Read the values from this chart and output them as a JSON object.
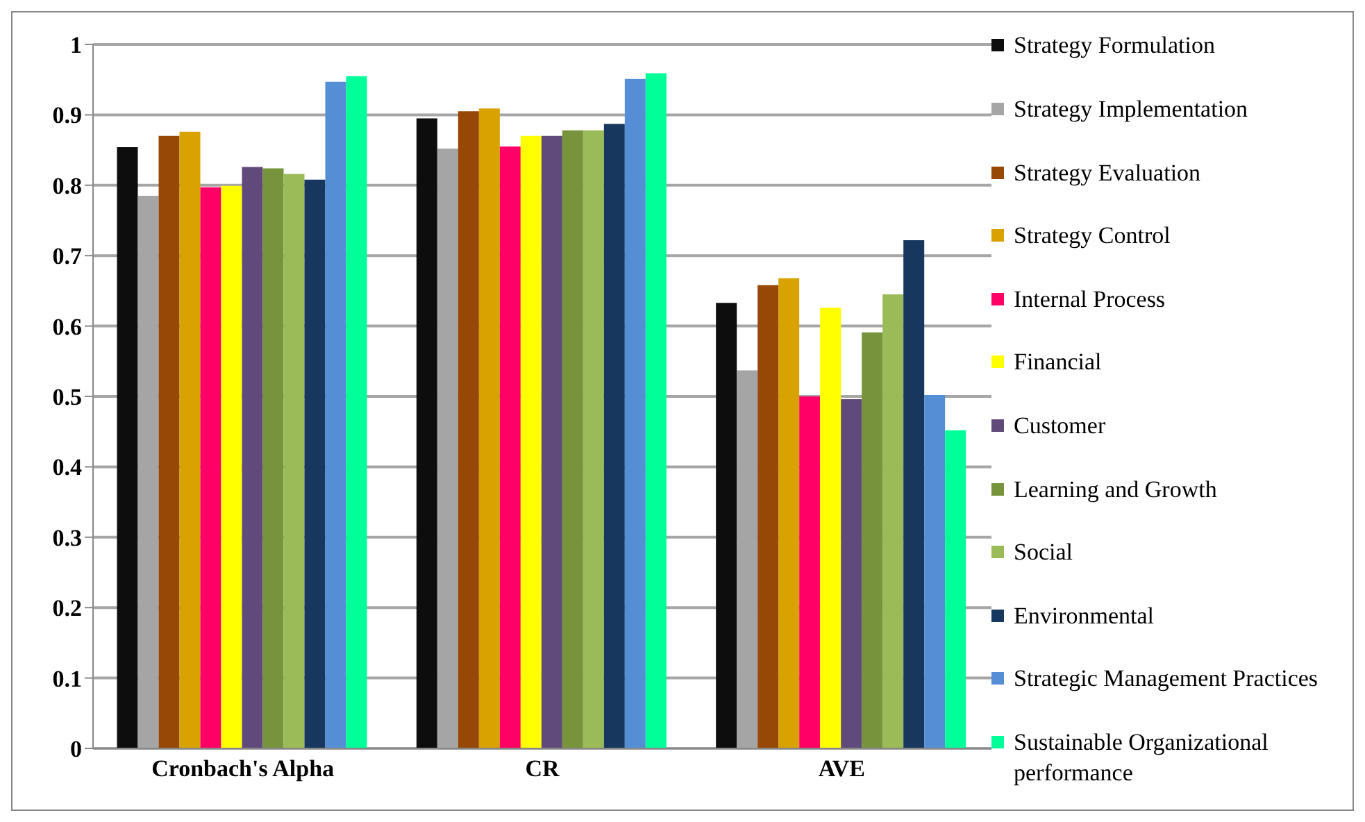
{
  "chart_data": {
    "type": "bar",
    "categories": [
      "Cronbach's Alpha",
      "CR",
      "AVE"
    ],
    "series": [
      {
        "name": "Strategy Formulation",
        "color": "#0d0d0d",
        "values": [
          0.854,
          0.895,
          0.633
        ]
      },
      {
        "name": "Strategy Implementation",
        "color": "#a5a5a5",
        "values": [
          0.785,
          0.852,
          0.537
        ]
      },
      {
        "name": "Strategy Evaluation",
        "color": "#974706",
        "values": [
          0.87,
          0.905,
          0.658
        ]
      },
      {
        "name": "Strategy Control",
        "color": "#d8a200",
        "values": [
          0.876,
          0.909,
          0.668
        ]
      },
      {
        "name": "Internal Process",
        "color": "#ff0066",
        "values": [
          0.797,
          0.855,
          0.5
        ]
      },
      {
        "name": "Financial",
        "color": "#ffff00",
        "values": [
          0.799,
          0.87,
          0.626
        ]
      },
      {
        "name": "Customer",
        "color": "#604a7b",
        "values": [
          0.826,
          0.87,
          0.496
        ]
      },
      {
        "name": "Learning and Growth",
        "color": "#77933c",
        "values": [
          0.824,
          0.878,
          0.591
        ]
      },
      {
        "name": "Social",
        "color": "#9bbb59",
        "values": [
          0.816,
          0.878,
          0.645
        ]
      },
      {
        "name": "Environmental",
        "color": "#17375e",
        "values": [
          0.808,
          0.887,
          0.722
        ]
      },
      {
        "name": "Strategic Management Practices",
        "color": "#558ed5",
        "values": [
          0.947,
          0.951,
          0.502
        ]
      },
      {
        "name": "Sustainable Organizational performance",
        "color": "#00ff99",
        "values": [
          0.955,
          0.959,
          0.452
        ]
      }
    ],
    "ylim": [
      0,
      1
    ],
    "yticks": [
      0,
      0.1,
      0.2,
      0.3,
      0.4,
      0.5,
      0.6,
      0.7,
      0.8,
      0.9,
      1
    ],
    "grid": "y",
    "legend": "right"
  }
}
